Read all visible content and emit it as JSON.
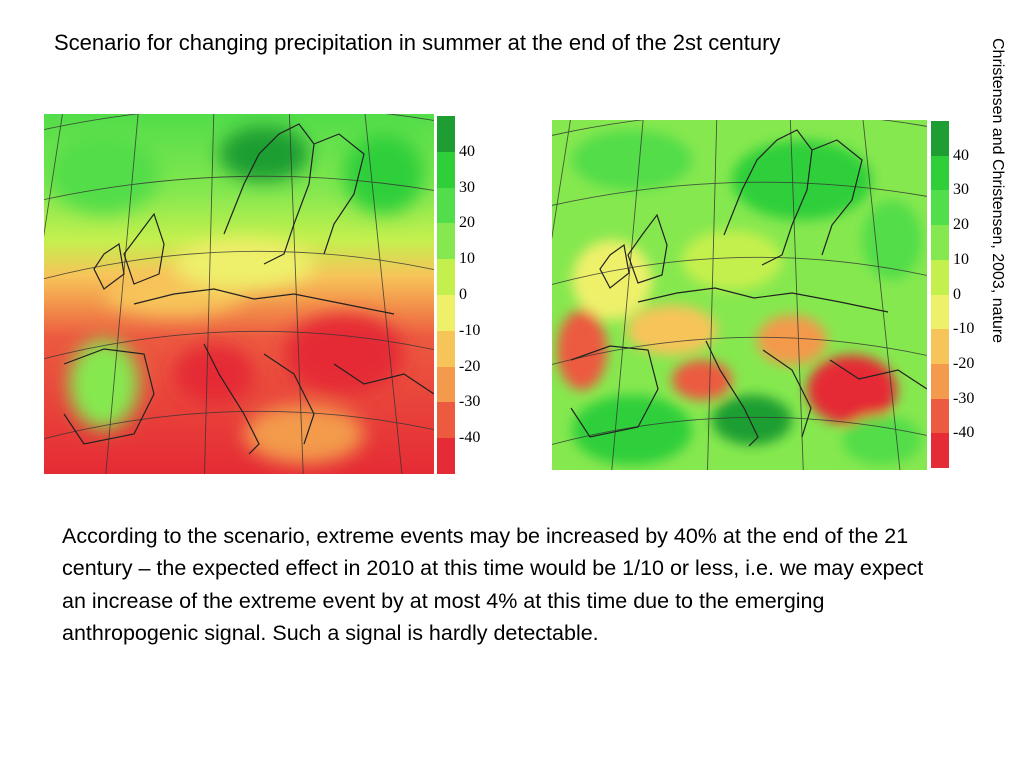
{
  "title": "Scenario for changing precipitation in summer at the end of the 2st century",
  "source": "Christensen and Christensen, 2003, nature",
  "colorbar": {
    "ticks": [
      "40",
      "30",
      "20",
      "10",
      "0",
      "-10",
      "-20",
      "-30",
      "-40"
    ],
    "colors": [
      "#1e9e32",
      "#2fcf3a",
      "#52dd4a",
      "#86e84f",
      "#c4f04e",
      "#eef06a",
      "#f7c45a",
      "#f39a4c",
      "#ec5a40",
      "#e52b35"
    ]
  },
  "body_text": "According to the scenario, extreme events may be increased by 40% at the end of the 21 century – the expected effect in 2010 at this time would be 1/10 or less, i.e. we may expect an increase of the extreme event by at most 4% at this time due to the emerging anthropogenic signal. Such a signal is hardly detectable."
}
